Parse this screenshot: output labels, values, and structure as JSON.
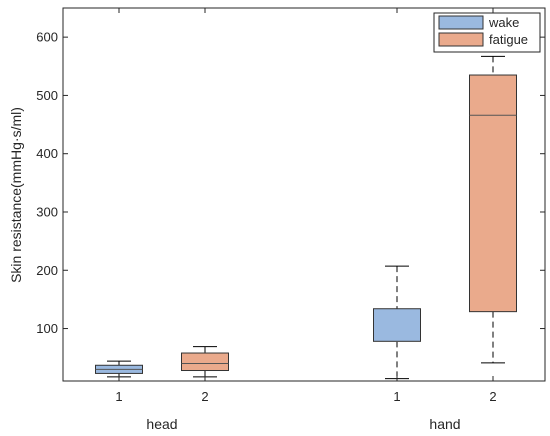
{
  "chart_data": {
    "type": "box",
    "ylabel": "Skin resistance(mmHg·s/ml)",
    "ylim": [
      10,
      650
    ],
    "yticks": [
      100,
      200,
      300,
      400,
      500,
      600
    ],
    "ytick_labels": [
      "100",
      "200",
      "300",
      "400",
      "500",
      "600"
    ],
    "groups": [
      {
        "label": "head",
        "box_labels": [
          "1",
          "2"
        ]
      },
      {
        "label": "hand",
        "box_labels": [
          "1",
          "2"
        ]
      }
    ],
    "series": [
      {
        "name": "wake",
        "color": "#9ab9e0",
        "boxes": [
          {
            "group": "head",
            "label": "1",
            "min": 17,
            "q1": 23,
            "median": 30,
            "q3": 37,
            "max": 44
          },
          {
            "group": "hand",
            "label": "1",
            "min": 14,
            "q1": 78,
            "median": 78,
            "q3": 134,
            "max": 207
          }
        ]
      },
      {
        "name": "fatigue",
        "color": "#eaaa8c",
        "boxes": [
          {
            "group": "head",
            "label": "2",
            "min": 17,
            "q1": 28,
            "median": 40,
            "q3": 58,
            "max": 69
          },
          {
            "group": "hand",
            "label": "2",
            "min": 41,
            "q1": 129,
            "median": 466,
            "q3": 535,
            "max": 567
          }
        ]
      }
    ],
    "legend": {
      "placement": "top-right",
      "entries": [
        "wake",
        "fatigue"
      ]
    },
    "grid": false
  }
}
